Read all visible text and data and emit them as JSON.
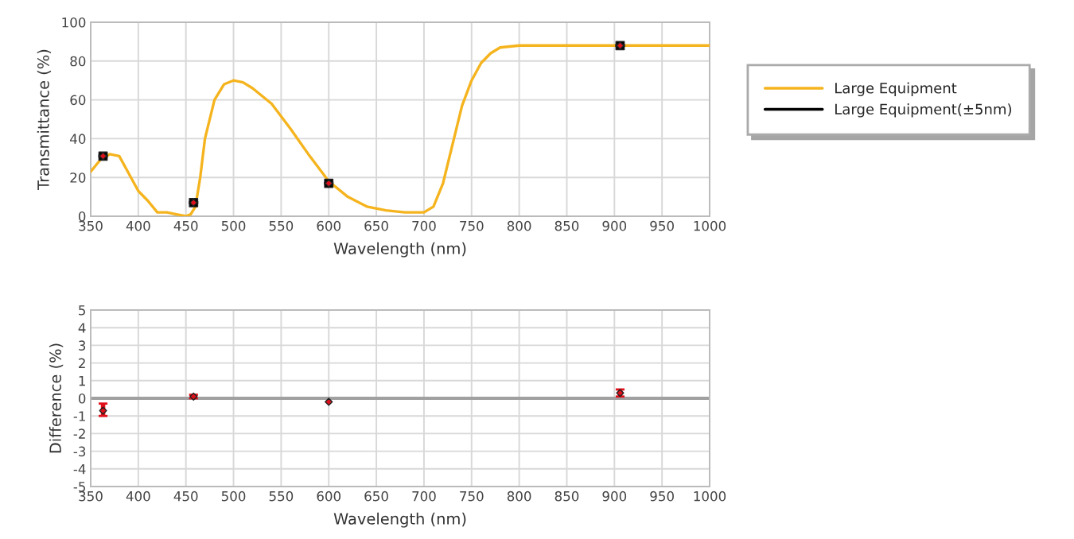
{
  "chart_data": [
    {
      "type": "line",
      "xlabel": "Wavelength (nm)",
      "ylabel": "Transmittance (%)",
      "xlim": [
        350,
        1000
      ],
      "xticks": [
        350,
        400,
        450,
        500,
        550,
        600,
        650,
        700,
        750,
        800,
        850,
        900,
        950,
        1000
      ],
      "ylim": [
        0,
        100
      ],
      "yticks": [
        0,
        20,
        40,
        60,
        80,
        100
      ],
      "grid": true,
      "legend": "right",
      "series": [
        {
          "name": "Large Equipment",
          "color": "#f5b41e",
          "x": [
            350,
            360,
            370,
            380,
            390,
            400,
            410,
            420,
            430,
            440,
            450,
            455,
            460,
            465,
            470,
            480,
            490,
            500,
            510,
            520,
            540,
            560,
            580,
            600,
            620,
            640,
            660,
            680,
            700,
            710,
            720,
            730,
            740,
            750,
            760,
            770,
            780,
            800,
            850,
            900,
            950,
            1000
          ],
          "values": [
            23,
            29,
            32,
            31,
            22,
            13,
            8,
            2,
            2,
            1,
            0,
            1,
            5,
            20,
            40,
            60,
            68,
            70,
            69,
            66,
            58,
            45,
            31,
            18,
            10,
            5,
            3,
            2,
            2,
            5,
            17,
            37,
            57,
            70,
            79,
            84,
            87,
            88,
            88,
            88,
            88,
            88
          ]
        },
        {
          "name": "Large Equipment(±5nm)",
          "type": "scatter",
          "color": "#000000",
          "marker": "square",
          "x": [
            363,
            458,
            600,
            906
          ],
          "values": [
            31,
            7,
            17,
            88
          ],
          "xerrors": [
            5,
            5,
            5,
            5
          ]
        },
        {
          "type": "scatter",
          "color": "#e0101a",
          "marker": "diamond",
          "x": [
            363,
            458,
            600,
            906
          ],
          "values": [
            31,
            7,
            17,
            88
          ]
        }
      ]
    },
    {
      "type": "scatter",
      "xlabel": "Wavelength (nm)",
      "ylabel": "Difference (%)",
      "xlim": [
        350,
        1000
      ],
      "xticks": [
        350,
        400,
        450,
        500,
        550,
        600,
        650,
        700,
        750,
        800,
        850,
        900,
        950,
        1000
      ],
      "ylim": [
        -5,
        5
      ],
      "yticks": [
        -5,
        -4,
        -3,
        -2,
        -1,
        0,
        1,
        2,
        3,
        4,
        5
      ],
      "grid": true,
      "ref_lines": [
        {
          "axis": "y",
          "value": 0,
          "color": "#a0a0a0"
        }
      ],
      "series": [
        {
          "color": "#e0101a",
          "marker": "diamond",
          "x": [
            363,
            458,
            600,
            906
          ],
          "values": [
            -0.7,
            0.1,
            -0.2,
            0.3
          ],
          "errors": [
            [
              -1.0,
              -0.3
            ],
            [
              0.0,
              0.2
            ],
            null,
            [
              0.1,
              0.5
            ]
          ]
        }
      ]
    }
  ]
}
